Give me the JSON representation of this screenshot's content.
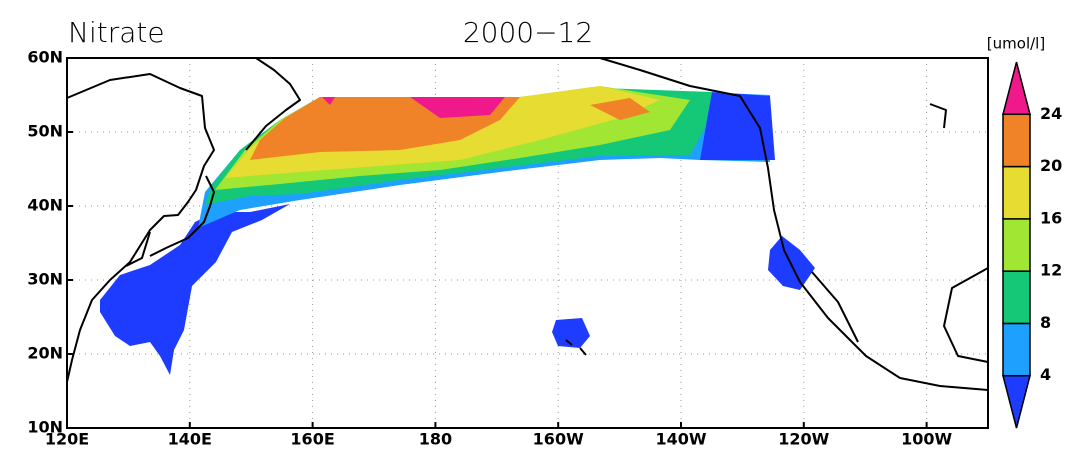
{
  "header": {
    "title": "Nitrate",
    "date": "2000−12",
    "unit": "[umol/l]"
  },
  "map": {
    "lon_range": [
      120,
      270
    ],
    "lat_range": [
      10,
      60
    ],
    "lon_ticks": [
      {
        "value": 120,
        "label": "120E"
      },
      {
        "value": 140,
        "label": "140E"
      },
      {
        "value": 160,
        "label": "160E"
      },
      {
        "value": 180,
        "label": "180"
      },
      {
        "value": 200,
        "label": "160W"
      },
      {
        "value": 220,
        "label": "140W"
      },
      {
        "value": 240,
        "label": "120W"
      },
      {
        "value": 260,
        "label": "100W"
      }
    ],
    "lat_ticks": [
      {
        "value": 10,
        "label": "10N"
      },
      {
        "value": 20,
        "label": "20N"
      },
      {
        "value": 30,
        "label": "30N"
      },
      {
        "value": 40,
        "label": "40N"
      },
      {
        "value": 50,
        "label": "50N"
      },
      {
        "value": 60,
        "label": "60N"
      }
    ]
  },
  "colorbar": {
    "levels": [
      4,
      8,
      12,
      16,
      20,
      24
    ],
    "colors": [
      "#1e3cff",
      "#1ea0ff",
      "#14c878",
      "#a0e632",
      "#e6dc32",
      "#f08228",
      "#f0198c"
    ]
  }
}
